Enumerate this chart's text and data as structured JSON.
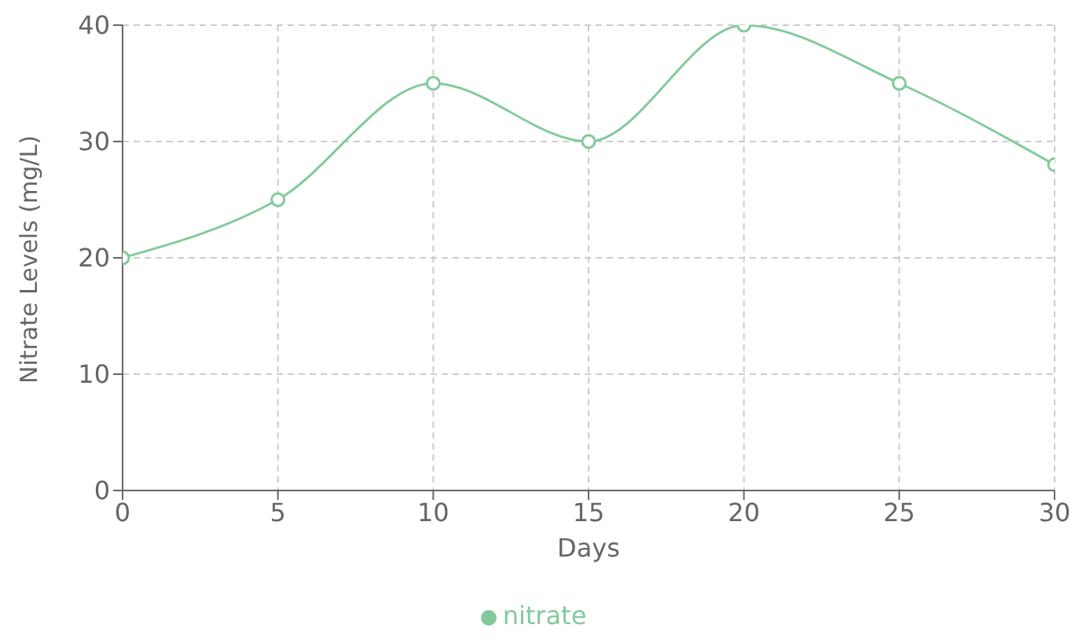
{
  "chart_data": {
    "type": "line",
    "xlabel": "Days",
    "ylabel": "Nitrate Levels (mg/L)",
    "x": [
      0,
      5,
      10,
      15,
      20,
      25,
      30
    ],
    "series": [
      {
        "name": "nitrate",
        "color": "#82ca9d",
        "values": [
          20,
          25,
          35,
          30,
          40,
          35,
          28
        ]
      }
    ],
    "xlim": [
      0,
      30
    ],
    "xticks": [
      0,
      5,
      10,
      15,
      20,
      25,
      30
    ],
    "ylim": [
      0,
      40
    ],
    "yticks": [
      0,
      10,
      20,
      30,
      40
    ],
    "grid": true,
    "legend": "bottom",
    "marker": "circle",
    "line_style": "solid"
  }
}
